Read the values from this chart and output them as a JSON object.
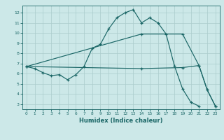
{
  "title": "",
  "xlabel": "Humidex (Indice chaleur)",
  "bg_color": "#cce8e8",
  "grid_color": "#aacccc",
  "line_color": "#1a6666",
  "xlim": [
    -0.5,
    23.5
  ],
  "ylim": [
    2.5,
    12.7
  ],
  "xticks": [
    0,
    1,
    2,
    3,
    4,
    5,
    6,
    7,
    8,
    9,
    10,
    11,
    12,
    13,
    14,
    15,
    16,
    17,
    18,
    19,
    20,
    21,
    22,
    23
  ],
  "yticks": [
    3,
    4,
    5,
    6,
    7,
    8,
    9,
    10,
    11,
    12
  ],
  "line1_x": [
    0,
    1,
    2,
    3,
    4,
    5,
    6,
    7,
    8,
    9,
    10,
    11,
    12,
    13,
    14,
    15,
    16,
    17,
    18,
    19,
    20,
    21
  ],
  "line1_y": [
    6.7,
    6.5,
    6.1,
    5.8,
    5.9,
    5.4,
    5.9,
    6.7,
    8.5,
    8.9,
    10.4,
    11.5,
    12.0,
    12.3,
    11.0,
    11.5,
    11.0,
    9.9,
    6.8,
    4.5,
    3.2,
    2.8
  ],
  "line2_x": [
    0,
    14,
    19,
    21,
    22,
    23
  ],
  "line2_y": [
    6.7,
    9.9,
    9.9,
    6.8,
    4.4,
    2.8
  ],
  "line3_x": [
    0,
    14,
    19,
    21,
    22,
    23
  ],
  "line3_y": [
    6.7,
    6.5,
    6.6,
    6.8,
    4.4,
    2.8
  ]
}
